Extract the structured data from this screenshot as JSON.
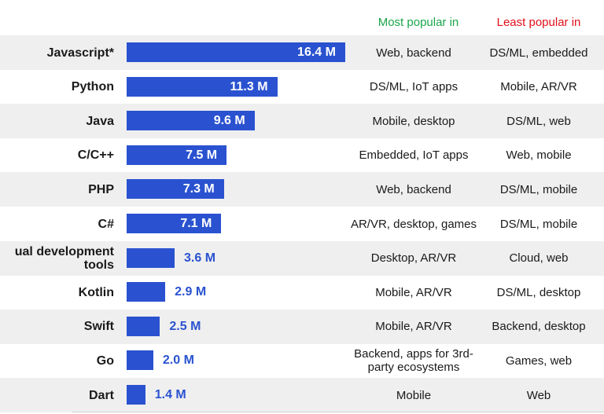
{
  "headers": {
    "most_popular": "Most popular in",
    "least_popular": "Least popular in"
  },
  "chart_data": {
    "type": "bar",
    "orientation": "horizontal",
    "unit": "M",
    "categories": [
      "Javascript*",
      "Python",
      "Java",
      "C/C++",
      "PHP",
      "C#",
      "Visual development tools",
      "Kotlin",
      "Swift",
      "Go",
      "Dart"
    ],
    "values": [
      16.4,
      11.3,
      9.6,
      7.5,
      7.3,
      7.1,
      3.6,
      2.9,
      2.5,
      2.0,
      1.4
    ],
    "value_labels": [
      "16.4 M",
      "11.3 M",
      "9.6 M",
      "7.5 M",
      "7.3 M",
      "7.1 M",
      "3.6 M",
      "2.9 M",
      "2.5 M",
      "2.0 M",
      "1.4 M"
    ],
    "most_popular": [
      "Web, backend",
      "DS/ML, IoT apps",
      "Mobile, desktop",
      "Embedded, IoT apps",
      "Web, backend",
      "AR/VR, desktop, games",
      "Desktop, AR/VR",
      "Mobile, AR/VR",
      "Mobile, AR/VR",
      "Backend, apps for 3rd-party ecosystems",
      "Mobile"
    ],
    "least_popular": [
      "DS/ML, embedded",
      "Mobile, AR/VR",
      "DS/ML, web",
      "Web, mobile",
      "DS/ML, mobile",
      "DS/ML, mobile",
      "Cloud, web",
      "DS/ML, desktop",
      "Backend, desktop",
      "Games, web",
      "Web"
    ],
    "bar_color": "#2a52d0",
    "most_color": "#1aa64a",
    "least_color": "#e0101a"
  }
}
